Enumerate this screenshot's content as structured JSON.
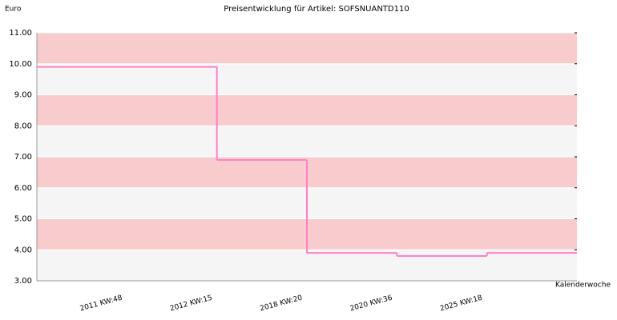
{
  "chart_data": {
    "type": "step",
    "title": "Preisentwicklung für Artikel: SOFSNUANTD110",
    "y_label": "Euro",
    "x_label": "Kalenderwoche",
    "categories": [
      "2011 KW:48",
      "2012 KW:15",
      "2018 KW:20",
      "2020 KW:36",
      "2025 KW:18",
      null
    ],
    "values": [
      9.9,
      9.9,
      6.9,
      3.9,
      3.8,
      3.9
    ],
    "color": "#ff80c8",
    "ylim": [
      3,
      11
    ],
    "yticks": [
      {
        "value": 3,
        "label": "3.00"
      },
      {
        "value": 4,
        "label": "4.00"
      },
      {
        "value": 5,
        "label": "5.00"
      },
      {
        "value": 6,
        "label": "6.00"
      },
      {
        "value": 7,
        "label": "7.00"
      },
      {
        "value": 8,
        "label": "8.00"
      },
      {
        "value": 9,
        "label": "9.00"
      },
      {
        "value": 10,
        "label": "10.00"
      },
      {
        "value": 11,
        "label": "11.00"
      }
    ],
    "grid": true
  }
}
